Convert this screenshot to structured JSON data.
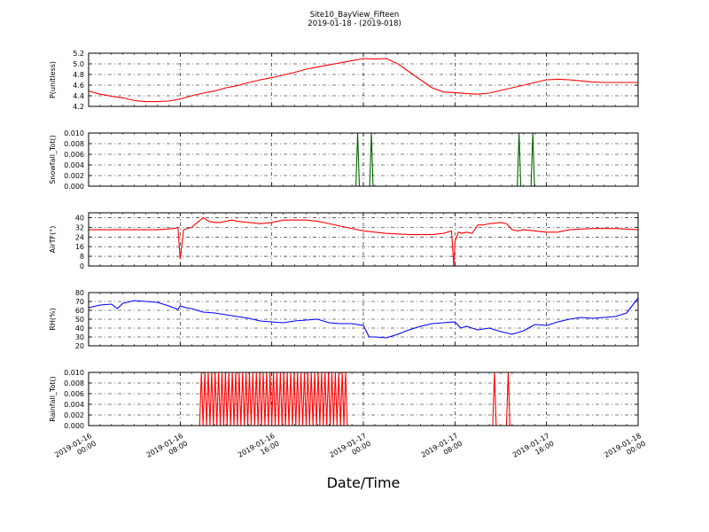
{
  "figure": {
    "title": "Site10_BayView_Fifteen",
    "subtitle": "2019-01-18 - (2019-018)",
    "xlabel": "Date/Time"
  },
  "colors": {
    "red": "#ff0000",
    "green": "#006400",
    "blue": "#0000ff",
    "grid": "#000000"
  },
  "chart_data": [
    {
      "type": "line",
      "ylabel": "P(unitless)",
      "ylim": [
        4.2,
        5.2
      ],
      "yticks": [
        "4.2",
        "4.4",
        "4.6",
        "4.8",
        "5.0",
        "5.2"
      ],
      "grid": true,
      "color": "#ff0000",
      "x": [
        0,
        1,
        2,
        3,
        4,
        5,
        6,
        7,
        8,
        9,
        10,
        11,
        12,
        13,
        14,
        15,
        16,
        17,
        18,
        19,
        20,
        21,
        22,
        23,
        24,
        25,
        26,
        27,
        28,
        29,
        30,
        31,
        32,
        33,
        34,
        35,
        36,
        37,
        38,
        39,
        40,
        41,
        42,
        43,
        44,
        45,
        46,
        47,
        48
      ],
      "values": [
        4.49,
        4.43,
        4.39,
        4.36,
        4.31,
        4.29,
        4.29,
        4.3,
        4.34,
        4.4,
        4.45,
        4.49,
        4.55,
        4.59,
        4.65,
        4.7,
        4.74,
        4.79,
        4.84,
        4.9,
        4.94,
        4.98,
        5.02,
        5.06,
        5.1,
        5.09,
        5.1,
        5.0,
        4.85,
        4.7,
        4.55,
        4.47,
        4.46,
        4.44,
        4.43,
        4.45,
        4.5,
        4.55,
        4.6,
        4.65,
        4.7,
        4.71,
        4.7,
        4.68,
        4.66,
        4.65,
        4.65,
        4.65,
        4.65
      ]
    },
    {
      "type": "line",
      "ylabel": "Snowfall_Tot()",
      "ylim": [
        0.0,
        0.01
      ],
      "yticks": [
        "0.000",
        "0.002",
        "0.004",
        "0.006",
        "0.008",
        "0.010"
      ],
      "grid": true,
      "color": "#006400",
      "x": [
        0,
        23.35,
        23.5,
        23.65,
        24.55,
        24.7,
        24.85,
        37.45,
        37.6,
        37.75,
        38.65,
        38.8,
        38.95,
        48
      ],
      "values": [
        0,
        0,
        0.01,
        0,
        0,
        0.01,
        0,
        0,
        0.01,
        0,
        0,
        0.01,
        0,
        0
      ]
    },
    {
      "type": "line",
      "ylabel": "AirTF(°)",
      "ylim": [
        0,
        44
      ],
      "yticks": [
        "0",
        "8",
        "16",
        "24",
        "32",
        "40"
      ],
      "grid": true,
      "color": "#ff0000",
      "x": [
        0,
        2,
        4,
        6,
        7.5,
        7.8,
        8,
        8.3,
        8.6,
        9,
        9.5,
        10,
        10.5,
        11,
        11.5,
        12,
        12.5,
        13,
        14,
        15,
        16,
        17,
        18,
        19,
        20,
        21,
        22,
        23,
        24,
        25,
        26,
        28,
        30,
        31,
        31.7,
        31.9,
        32,
        32.3,
        32.6,
        33,
        33.5,
        34,
        34.5,
        35,
        36,
        36.5,
        37,
        37.5,
        38,
        39,
        40,
        41,
        42,
        44,
        46,
        48
      ],
      "values": [
        30,
        30,
        30,
        30,
        31,
        32,
        6,
        30,
        31,
        32,
        36,
        40,
        37,
        36,
        36,
        37,
        38,
        37,
        36,
        35,
        36,
        38,
        38,
        38,
        37,
        35,
        33,
        31,
        29,
        28,
        27,
        26,
        26,
        27,
        29,
        0,
        20,
        28,
        27,
        28,
        27,
        34,
        34,
        35,
        36,
        35,
        30,
        29,
        30,
        29,
        28,
        28,
        30,
        31,
        31,
        30
      ]
    },
    {
      "type": "line",
      "ylabel": "RH(%)",
      "ylim": [
        20,
        80
      ],
      "yticks": [
        "20",
        "30",
        "40",
        "50",
        "60",
        "70",
        "80"
      ],
      "grid": true,
      "color": "#0000ff",
      "x": [
        0,
        1,
        2,
        2.5,
        3,
        4,
        5,
        6,
        7,
        7.8,
        8,
        8.5,
        9,
        10,
        11,
        12,
        13,
        14,
        15,
        16,
        17,
        18,
        19,
        20,
        21,
        22,
        23,
        24,
        24.5,
        25,
        26,
        27,
        28,
        29,
        30,
        31,
        32,
        32.5,
        33,
        34,
        35,
        36,
        37,
        38,
        39,
        40,
        41,
        42,
        43,
        44,
        45,
        46,
        47,
        48
      ],
      "values": [
        63,
        66,
        67,
        62,
        68,
        71,
        70,
        69,
        65,
        61,
        65,
        63,
        62,
        58,
        57,
        55,
        53,
        51,
        48,
        47,
        46,
        48,
        49,
        50,
        46,
        45,
        45,
        43,
        30,
        30,
        29,
        33,
        38,
        42,
        45,
        46,
        47,
        40,
        42,
        38,
        40,
        36,
        33,
        37,
        44,
        43,
        47,
        50,
        52,
        51,
        52,
        53,
        57,
        74
      ]
    },
    {
      "type": "line",
      "ylabel": "Rainfall_Tot()",
      "ylim": [
        0.0,
        0.01
      ],
      "yticks": [
        "0.000",
        "0.002",
        "0.004",
        "0.006",
        "0.008",
        "0.010"
      ],
      "grid": true,
      "color": "#ff0000",
      "x": [
        0,
        9.7,
        9.85,
        10.0,
        10.15,
        10.3,
        10.45,
        10.6,
        10.75,
        10.9,
        11.05,
        11.2,
        11.35,
        11.5,
        11.65,
        11.8,
        11.95,
        12.1,
        12.25,
        12.4,
        12.55,
        12.7,
        12.85,
        13.0,
        13.15,
        13.3,
        13.45,
        13.6,
        13.75,
        13.9,
        14.05,
        14.2,
        14.35,
        14.5,
        14.65,
        14.8,
        14.95,
        15.1,
        15.25,
        15.4,
        15.55,
        15.7,
        15.85,
        16.0,
        16.15,
        16.3,
        16.45,
        16.6,
        16.75,
        16.9,
        17.05,
        17.2,
        17.35,
        17.5,
        17.65,
        17.8,
        17.95,
        18.1,
        18.25,
        18.4,
        18.55,
        18.7,
        18.85,
        19.0,
        19.15,
        19.3,
        19.45,
        19.6,
        19.75,
        19.9,
        20.05,
        20.2,
        20.35,
        20.5,
        20.65,
        20.8,
        20.95,
        21.1,
        21.25,
        21.4,
        21.55,
        21.7,
        21.85,
        22.0,
        22.15,
        22.3,
        22.45,
        22.6,
        22.75,
        35.3,
        35.45,
        35.6,
        36.5,
        36.65,
        36.8,
        48
      ],
      "values": [
        0,
        0,
        0.01,
        0,
        0.01,
        0,
        0.01,
        0,
        0.01,
        0,
        0.01,
        0,
        0.01,
        0,
        0.01,
        0,
        0.01,
        0,
        0.01,
        0,
        0.01,
        0,
        0.01,
        0,
        0.01,
        0,
        0.01,
        0,
        0.01,
        0,
        0.01,
        0,
        0.01,
        0,
        0.01,
        0,
        0.01,
        0,
        0.01,
        0,
        0.01,
        0,
        0.01,
        0,
        0.01,
        0,
        0.01,
        0,
        0.01,
        0,
        0.01,
        0,
        0.01,
        0,
        0.01,
        0,
        0.01,
        0,
        0.01,
        0,
        0.01,
        0,
        0.01,
        0,
        0.01,
        0,
        0.01,
        0,
        0.01,
        0,
        0.01,
        0,
        0.01,
        0,
        0.01,
        0,
        0.01,
        0,
        0.01,
        0,
        0.01,
        0,
        0.01,
        0,
        0.01,
        0,
        0.01,
        0,
        0,
        0,
        0.01,
        0,
        0,
        0.01,
        0,
        0
      ]
    }
  ],
  "xaxis": {
    "xlim": [
      0,
      48
    ],
    "tick_x": [
      0,
      8,
      16,
      24,
      32,
      40,
      48
    ],
    "tick_dates": [
      "2019-01-16",
      "2019-01-16",
      "2019-01-16",
      "2019-01-17",
      "2019-01-17",
      "2019-01-17",
      "2019-01-18"
    ],
    "tick_times": [
      "00:00",
      "08:00",
      "16:00",
      "00:00",
      "08:00",
      "16:00",
      "00:00"
    ]
  }
}
